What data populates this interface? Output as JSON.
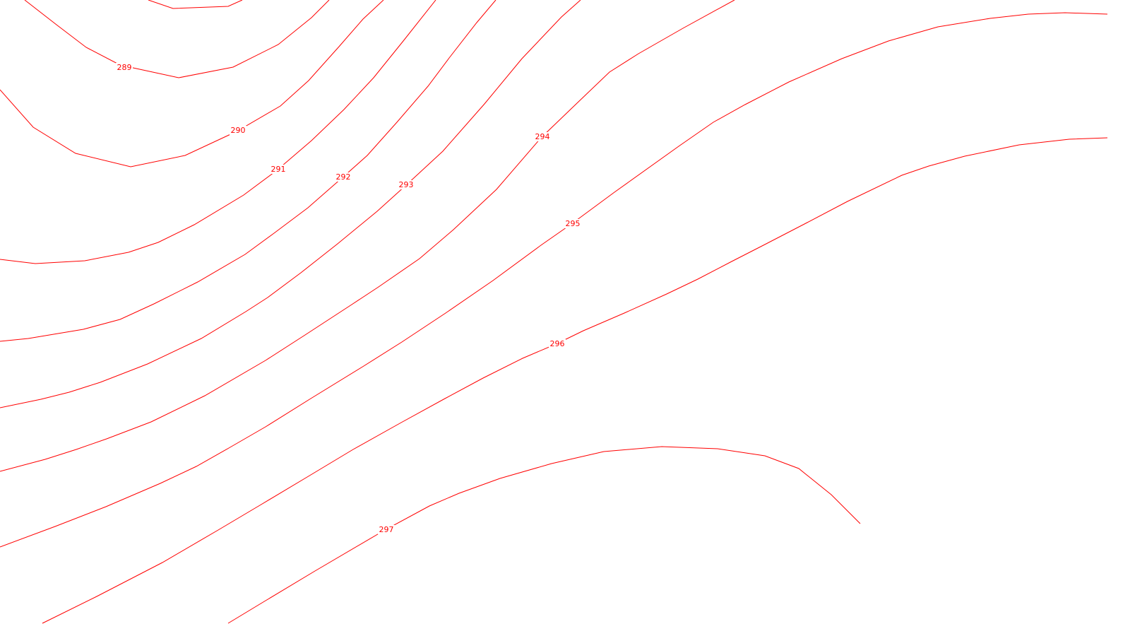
{
  "map": {
    "line_color": "#ff0000",
    "background": "#ffffff",
    "contours": [
      {
        "level": "289"
      },
      {
        "level": "290"
      },
      {
        "level": "291"
      },
      {
        "level": "292"
      },
      {
        "level": "293"
      },
      {
        "level": "294"
      },
      {
        "level": "295"
      },
      {
        "level": "296"
      },
      {
        "level": "297"
      }
    ]
  }
}
